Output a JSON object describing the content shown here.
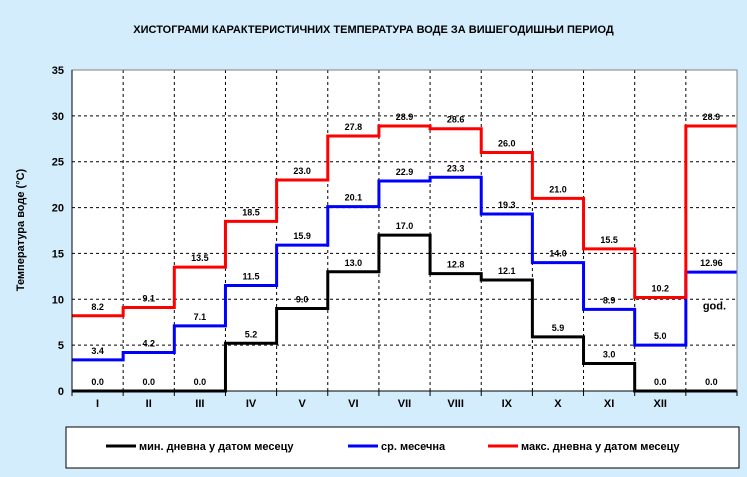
{
  "chart_data": {
    "type": "line",
    "title": "ХИСТОГРАМИ КАРАКТЕРИСТИЧНИХ ТЕМПЕРАТУРА ВОДЕ ЗА ВИШЕГОДИШЊИ ПЕРИОД",
    "ylabel": "Температура воде (°C)",
    "xlabel": "",
    "ylim": [
      0,
      35
    ],
    "yticks": [
      "0",
      "5",
      "10",
      "15",
      "20",
      "25",
      "30",
      "35"
    ],
    "grid": true,
    "categories": [
      "I",
      "II",
      "III",
      "IV",
      "V",
      "VI",
      "VII",
      "VIII",
      "IX",
      "X",
      "XI",
      "XII",
      ""
    ],
    "annual_label": "god.",
    "legend_position": "bottom",
    "series": [
      {
        "name": "мин. дневна у датом месецу",
        "color": "#000000",
        "values": [
          0.0,
          0.0,
          0.0,
          5.2,
          9.0,
          13.0,
          17.0,
          12.8,
          12.1,
          5.9,
          3.0,
          0.0,
          0.0
        ],
        "labels": [
          "0.0",
          "0.0",
          "0.0",
          "5.2",
          "9.0",
          "13.0",
          "17.0",
          "12.8",
          "12.1",
          "5.9",
          "3.0",
          "0.0",
          "0.0"
        ]
      },
      {
        "name": "ср. месечна",
        "color": "#0000ff",
        "values": [
          3.4,
          4.2,
          7.1,
          11.5,
          15.9,
          20.1,
          22.9,
          23.3,
          19.3,
          14.0,
          8.9,
          5.0,
          12.96
        ],
        "labels": [
          "3.4",
          "4.2",
          "7.1",
          "11.5",
          "15.9",
          "20.1",
          "22.9",
          "23.3",
          "19.3",
          "14.0",
          "8.9",
          "5.0",
          "12.96"
        ]
      },
      {
        "name": "макс. дневна у датом месецу",
        "color": "#ff0000",
        "values": [
          8.2,
          9.1,
          13.5,
          18.5,
          23.0,
          27.8,
          28.9,
          28.6,
          26.0,
          21.0,
          15.5,
          10.2,
          28.9
        ],
        "labels": [
          "8.2",
          "9.1",
          "13.5",
          "18.5",
          "23.0",
          "27.8",
          "28.9",
          "28.6",
          "26.0",
          "21.0",
          "15.5",
          "10.2",
          "28.9"
        ]
      }
    ]
  }
}
